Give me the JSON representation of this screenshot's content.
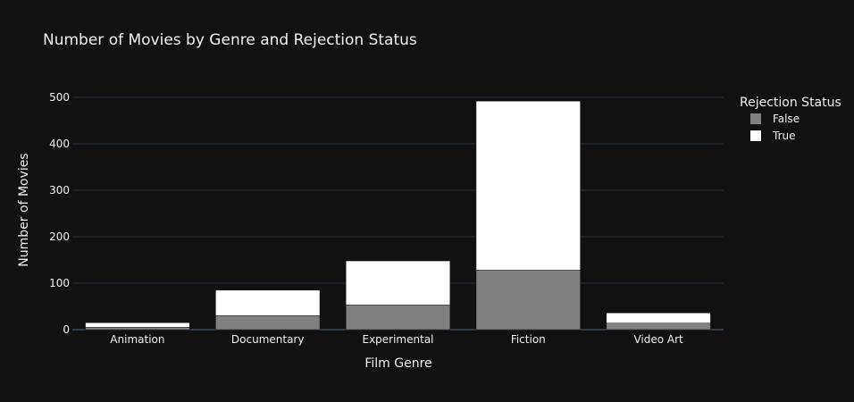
{
  "chart_data": {
    "type": "bar",
    "barmode": "stack",
    "title": "Number of Movies by Genre and Rejection Status",
    "xlabel": "Film Genre",
    "ylabel": "Number of Movies",
    "categories": [
      "Animation",
      "Documentary",
      "Experimental",
      "Fiction",
      "Video Art"
    ],
    "series": [
      {
        "name": "False",
        "color": "#808080",
        "values": [
          5,
          30,
          53,
          128,
          14
        ]
      },
      {
        "name": "True",
        "color": "#ffffff",
        "values": [
          10,
          55,
          95,
          364,
          22
        ]
      }
    ],
    "ylim": [
      0,
      500
    ],
    "yticks": [
      0,
      100,
      200,
      300,
      400,
      500
    ],
    "grid": true,
    "legend": {
      "title": "Rejection Status",
      "placement": "top-right"
    },
    "background": "#111111"
  }
}
